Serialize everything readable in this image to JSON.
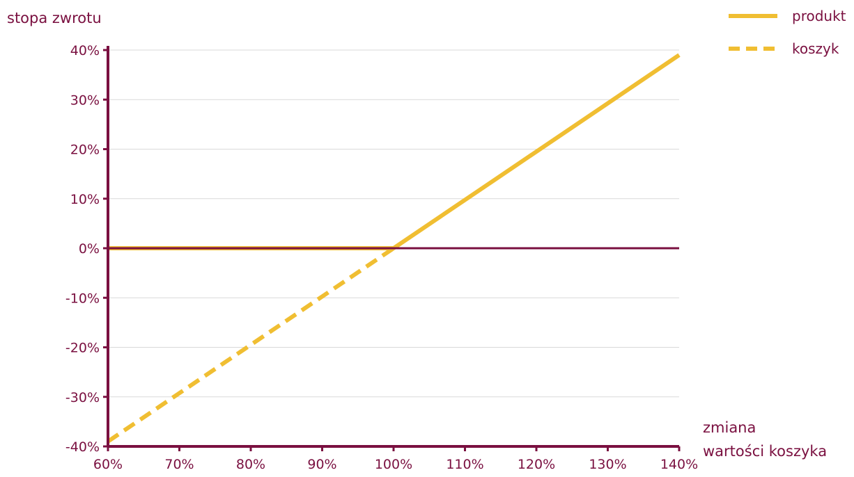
{
  "chart_data": {
    "type": "line",
    "ylabel": "stopa zwrotu",
    "xlabel_lines": [
      "zmiana",
      "wartości koszyka"
    ],
    "x_ticks": [
      "60%",
      "70%",
      "80%",
      "90%",
      "100%",
      "110%",
      "120%",
      "130%",
      "140%"
    ],
    "y_ticks": [
      "40%",
      "30%",
      "20%",
      "10%",
      "0%",
      "-10%",
      "-20%",
      "-30%",
      "-40%"
    ],
    "xlim": [
      60,
      140
    ],
    "ylim": [
      -40,
      40
    ],
    "grid": true,
    "legend_position": "top-right",
    "series": [
      {
        "name": "produkt",
        "style": "solid",
        "x": [
          60,
          100,
          140
        ],
        "y": [
          0,
          0,
          39
        ]
      },
      {
        "name": "koszyk",
        "style": "dashed",
        "x": [
          60,
          100
        ],
        "y": [
          -39,
          0
        ]
      }
    ],
    "colors": {
      "axis": "#7a1040",
      "series": "#f0be32",
      "grid": "#d9d9d9",
      "text": "#7a1040"
    }
  }
}
